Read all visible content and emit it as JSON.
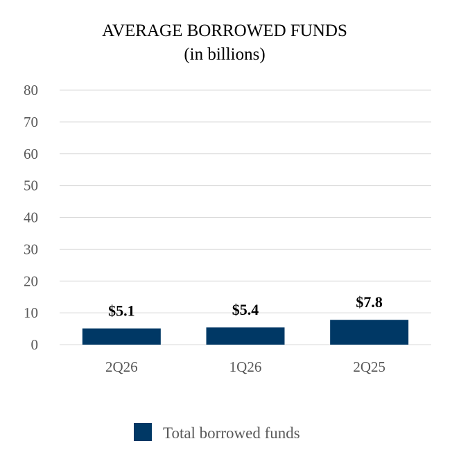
{
  "chart_data": {
    "type": "bar",
    "title": "AVERAGE BORROWED FUNDS",
    "subtitle": "(in billions)",
    "categories": [
      "2Q26",
      "1Q26",
      "2Q25"
    ],
    "series": [
      {
        "name": "Total borrowed funds",
        "values": [
          5.1,
          5.4,
          7.8
        ],
        "data_labels": [
          "$5.1",
          "$5.4",
          "$7.8"
        ],
        "color": "#003865"
      }
    ],
    "ylim": [
      0,
      80
    ],
    "yticks": [
      0,
      10,
      20,
      30,
      40,
      50,
      60,
      70,
      80
    ],
    "grid": true,
    "legend_position": "bottom"
  }
}
